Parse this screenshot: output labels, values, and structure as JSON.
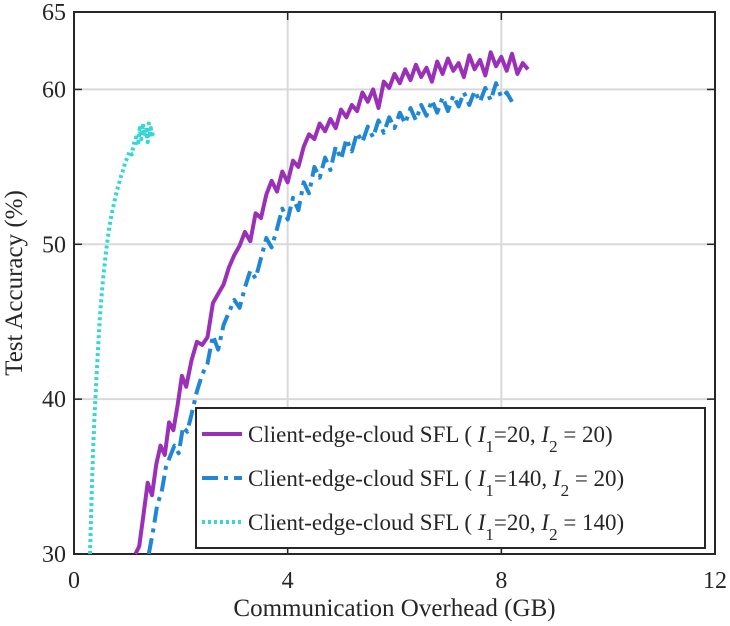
{
  "chart_data": {
    "type": "line",
    "xlabel": "Communication Overhead (GB)",
    "ylabel": "Test Accuracy (%)",
    "xlim": [
      0,
      12
    ],
    "ylim": [
      30,
      65
    ],
    "xticks": [
      "0",
      "4",
      "8",
      "12"
    ],
    "yticks": [
      "30",
      "40",
      "50",
      "60",
      "65"
    ],
    "grid": true,
    "legend_position": "bottom-right",
    "colors": {
      "series_1": "#9b30b8",
      "series_2": "#1f87d4",
      "series_3": "#37d6d6"
    },
    "series": [
      {
        "name": "Client-edge-cloud SFL ( I1=20, I2 = 20)",
        "label": {
          "pre": "Client-edge-cloud SFL ( ",
          "v1": "I",
          "s1": "1",
          "mid": "=20, ",
          "v2": "I",
          "s2": "2",
          "post": " = 20)"
        },
        "style": "solid",
        "color": "#9b30b8",
        "x": [
          1.15,
          1.22,
          1.3,
          1.38,
          1.46,
          1.54,
          1.62,
          1.7,
          1.78,
          1.86,
          1.94,
          2.02,
          2.1,
          2.2,
          2.3,
          2.4,
          2.5,
          2.6,
          2.7,
          2.8,
          2.9,
          3.0,
          3.1,
          3.2,
          3.3,
          3.4,
          3.5,
          3.6,
          3.7,
          3.8,
          3.9,
          4.0,
          4.1,
          4.2,
          4.3,
          4.4,
          4.5,
          4.6,
          4.7,
          4.8,
          4.9,
          5.0,
          5.1,
          5.2,
          5.3,
          5.4,
          5.5,
          5.6,
          5.7,
          5.8,
          5.9,
          6.0,
          6.1,
          6.2,
          6.3,
          6.4,
          6.5,
          6.6,
          6.7,
          6.8,
          6.9,
          7.0,
          7.1,
          7.2,
          7.3,
          7.4,
          7.5,
          7.6,
          7.7,
          7.8,
          7.9,
          8.0,
          8.1,
          8.2,
          8.3,
          8.4,
          8.5
        ],
        "y": [
          30.0,
          30.5,
          32.5,
          34.6,
          33.8,
          35.8,
          37.0,
          36.4,
          38.5,
          38.0,
          39.6,
          41.5,
          40.8,
          42.5,
          43.7,
          43.5,
          44.0,
          46.2,
          46.8,
          47.4,
          48.5,
          49.3,
          49.9,
          50.8,
          50.2,
          52.0,
          51.7,
          53.2,
          54.1,
          53.4,
          54.7,
          54.0,
          55.4,
          55.0,
          56.3,
          57.1,
          56.8,
          57.8,
          57.3,
          58.1,
          57.5,
          58.7,
          58.2,
          59.0,
          58.6,
          59.8,
          59.2,
          60.0,
          58.8,
          60.5,
          60.1,
          61.0,
          60.4,
          61.3,
          60.6,
          61.6,
          60.8,
          61.4,
          60.5,
          61.8,
          61.0,
          62.0,
          61.2,
          61.7,
          60.8,
          62.2,
          61.3,
          61.9,
          60.9,
          62.4,
          61.5,
          62.1,
          61.2,
          62.3,
          61.0,
          61.7,
          61.3
        ]
      },
      {
        "name": "Client-edge-cloud SFL ( I1=140, I2 = 20)",
        "label": {
          "pre": "Client-edge-cloud SFL ( ",
          "v1": "I",
          "s1": "1",
          "mid": "=140, ",
          "v2": "I",
          "s2": "2",
          "post": " = 20)"
        },
        "style": "dashdot",
        "color": "#1f87d4",
        "x": [
          1.4,
          1.48,
          1.56,
          1.64,
          1.72,
          1.8,
          1.88,
          1.96,
          2.04,
          2.12,
          2.2,
          2.3,
          2.4,
          2.5,
          2.6,
          2.7,
          2.8,
          2.9,
          3.0,
          3.1,
          3.2,
          3.3,
          3.4,
          3.5,
          3.6,
          3.7,
          3.8,
          3.9,
          4.0,
          4.1,
          4.2,
          4.3,
          4.4,
          4.5,
          4.6,
          4.7,
          4.8,
          4.9,
          5.0,
          5.1,
          5.2,
          5.3,
          5.4,
          5.5,
          5.6,
          5.7,
          5.8,
          5.9,
          6.0,
          6.1,
          6.2,
          6.3,
          6.4,
          6.5,
          6.6,
          6.7,
          6.8,
          6.9,
          7.0,
          7.1,
          7.2,
          7.3,
          7.4,
          7.5,
          7.6,
          7.7,
          7.8,
          7.9,
          8.0,
          8.1,
          8.2
        ],
        "y": [
          30.0,
          31.5,
          33.2,
          34.0,
          35.6,
          36.3,
          37.0,
          36.5,
          38.2,
          37.9,
          39.0,
          40.5,
          41.6,
          42.3,
          44.1,
          43.2,
          44.8,
          45.6,
          46.4,
          45.9,
          47.2,
          48.3,
          47.8,
          49.1,
          50.4,
          49.8,
          51.0,
          52.3,
          51.6,
          53.0,
          52.2,
          54.0,
          53.3,
          55.0,
          54.3,
          55.6,
          54.8,
          56.3,
          55.5,
          56.8,
          56.0,
          57.2,
          56.6,
          57.6,
          56.9,
          58.0,
          57.2,
          58.2,
          57.5,
          58.5,
          57.8,
          58.8,
          58.0,
          59.0,
          58.3,
          59.3,
          58.5,
          59.5,
          58.6,
          59.6,
          58.9,
          59.8,
          59.0,
          59.9,
          59.2,
          60.1,
          59.3,
          60.4,
          59.5,
          59.8,
          59.2
        ]
      },
      {
        "name": "Client-edge-cloud SFL ( I1=20, I2 = 140)",
        "label": {
          "pre": "Client-edge-cloud SFL ( ",
          "v1": "I",
          "s1": "1",
          "mid": "=20, ",
          "v2": "I",
          "s2": "2",
          "post": " = 140)"
        },
        "style": "dotted",
        "color": "#37d6d6",
        "x": [
          0.3,
          0.32,
          0.34,
          0.36,
          0.38,
          0.4,
          0.42,
          0.44,
          0.46,
          0.48,
          0.5,
          0.53,
          0.56,
          0.6,
          0.64,
          0.68,
          0.72,
          0.76,
          0.8,
          0.84,
          0.88,
          0.92,
          0.96,
          1.0,
          1.04,
          1.08,
          1.12,
          1.16,
          1.2,
          1.23,
          1.26,
          1.29,
          1.32,
          1.35,
          1.38,
          1.4,
          1.42,
          1.44,
          1.46,
          1.48,
          1.5
        ],
        "y": [
          30.0,
          32.5,
          35.0,
          36.8,
          38.6,
          40.0,
          41.3,
          42.6,
          43.9,
          45.0,
          46.0,
          47.2,
          48.3,
          49.5,
          50.6,
          51.5,
          52.2,
          52.8,
          53.4,
          53.9,
          54.4,
          54.8,
          55.3,
          55.6,
          56.0,
          55.8,
          56.5,
          56.9,
          56.4,
          57.5,
          56.8,
          57.8,
          57.0,
          57.4,
          56.6,
          57.8,
          57.1,
          57.5,
          56.9,
          57.3,
          57.2
        ]
      }
    ]
  }
}
